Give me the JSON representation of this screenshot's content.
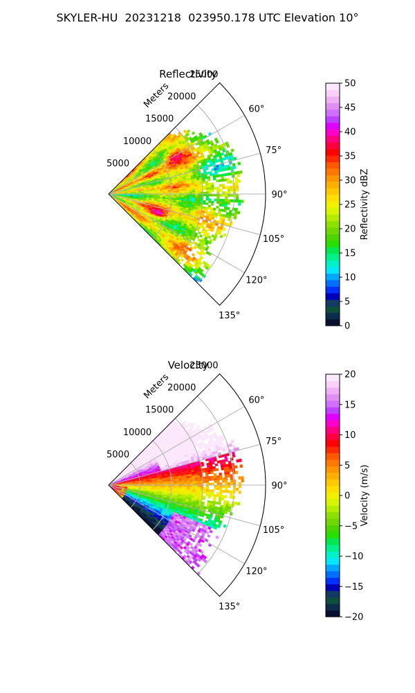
{
  "figure": {
    "title": "SKYLER-HU  20231218  023950.178 UTC Elevation 10°"
  },
  "chart_data": [
    {
      "type": "heatmap",
      "subtype": "polar-sector",
      "title": "Reflectivity",
      "range_label": "Meters",
      "range_ticks": [
        5000,
        10000,
        15000,
        20000,
        25000
      ],
      "range_max": 25000,
      "azimuth_range_deg": [
        45,
        135
      ],
      "azimuth_ticks": [
        "60°",
        "75°",
        "90°",
        "105°",
        "120°",
        "135°"
      ],
      "colorbar": {
        "label": "Reflectivity dBZ",
        "min": 0,
        "max": 50,
        "ticks": [
          "0",
          "5",
          "10",
          "15",
          "20",
          "25",
          "30",
          "35",
          "40",
          "45",
          "50"
        ],
        "colors": [
          "#0a1030",
          "#0c2d4a",
          "#0f4d3c",
          "#123a62",
          "#0000b8",
          "#0030ff",
          "#0070ff",
          "#00a8ff",
          "#00e8ff",
          "#00f0c8",
          "#00f08a",
          "#00e850",
          "#28e000",
          "#4cd400",
          "#70d800",
          "#8ee000",
          "#b4ec00",
          "#d8f400",
          "#f0f000",
          "#ffe000",
          "#ffc800",
          "#ffb000",
          "#ff9600",
          "#ff7800",
          "#ff5a00",
          "#ff2a00",
          "#ff0000",
          "#ff0040",
          "#ff0080",
          "#ff00c8",
          "#e000ff",
          "#c040ff",
          "#d070ff",
          "#e090f0",
          "#f0b0f4",
          "#f8d0f8",
          "#fce8fc"
        ]
      },
      "echo_summary": "Yellow-orange core 20–35 dBZ with red cells near 35–40 dBZ, green 15–20 dBZ fringes at far range"
    },
    {
      "type": "heatmap",
      "subtype": "polar-sector",
      "title": "Velocity",
      "range_label": "Meters",
      "range_ticks": [
        5000,
        10000,
        15000,
        20000,
        25000
      ],
      "range_max": 25000,
      "azimuth_range_deg": [
        45,
        135
      ],
      "azimuth_ticks": [
        "60°",
        "75°",
        "90°",
        "105°",
        "120°",
        "135°"
      ],
      "colorbar": {
        "label": "Velocity (m/s)",
        "min": -20,
        "max": 20,
        "ticks": [
          "−20",
          "−15",
          "−10",
          "−5",
          "0",
          "5",
          "10",
          "15",
          "20"
        ],
        "colors": [
          "#0a1030",
          "#0c2d4a",
          "#0f4d3c",
          "#123a62",
          "#0000b8",
          "#0030ff",
          "#0070ff",
          "#00a8ff",
          "#00e8ff",
          "#00f0c8",
          "#00f08a",
          "#00e850",
          "#28e000",
          "#4cd400",
          "#70d800",
          "#8ee000",
          "#b4ec00",
          "#d8f400",
          "#f0f000",
          "#ffe000",
          "#ffc800",
          "#ffb000",
          "#ff9600",
          "#ff7800",
          "#ff5a00",
          "#ff2a00",
          "#ff0000",
          "#ff0040",
          "#ff0080",
          "#ff00c8",
          "#e000ff",
          "#c040ff",
          "#d070ff",
          "#e090f0",
          "#f0b0f4",
          "#f8d0f8",
          "#fce8fc"
        ]
      },
      "echo_summary": "Inbound red/magenta 8–15 m/s toward 60–75°, near-zero yellow along 90°, outbound green/cyan −5 to −12 m/s toward 105–125°, purple ~15 m/s near radar and at 120–130°"
    }
  ]
}
